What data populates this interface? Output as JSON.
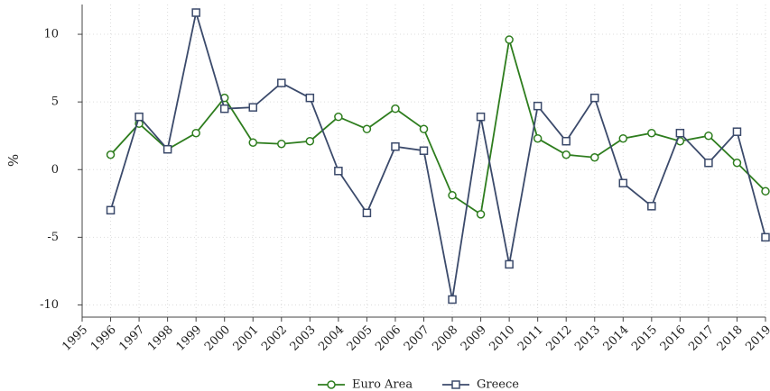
{
  "chart_data": {
    "type": "line",
    "y_label": "%",
    "x": [
      1996,
      1997,
      1998,
      1999,
      2000,
      2001,
      2002,
      2003,
      2004,
      2005,
      2006,
      2007,
      2008,
      2009,
      2010,
      2011,
      2012,
      2013,
      2014,
      2015,
      2016,
      2017,
      2018,
      2019
    ],
    "series": [
      {
        "name": "Euro Area",
        "color": "#2e7d1e",
        "marker": "circle",
        "values": [
          1.1,
          3.4,
          1.5,
          2.7,
          5.3,
          2.0,
          1.9,
          2.1,
          3.9,
          3.0,
          4.5,
          3.0,
          -1.9,
          -3.3,
          9.6,
          2.3,
          1.1,
          0.9,
          2.3,
          2.7,
          2.1,
          2.5,
          0.5,
          -1.6
        ]
      },
      {
        "name": "Greece",
        "color": "#3b4a6b",
        "marker": "square",
        "values": [
          -3.0,
          3.9,
          1.5,
          11.6,
          4.5,
          4.6,
          6.4,
          5.3,
          -0.1,
          -3.2,
          1.7,
          1.4,
          -9.6,
          3.9,
          -7.0,
          4.7,
          2.1,
          5.3,
          -1.0,
          -2.7,
          2.7,
          0.5,
          2.8,
          -5.0
        ]
      }
    ],
    "xlim": [
      1995,
      2019
    ],
    "xticks": [
      1995,
      1996,
      1997,
      1998,
      1999,
      2000,
      2001,
      2002,
      2003,
      2004,
      2005,
      2006,
      2007,
      2008,
      2009,
      2010,
      2011,
      2012,
      2013,
      2014,
      2015,
      2016,
      2017,
      2018,
      2019
    ],
    "ylim": [
      -10.9,
      12.2
    ],
    "yticks": [
      -10,
      -5,
      0,
      5,
      10
    ],
    "grid": true,
    "legend": "bottom"
  }
}
